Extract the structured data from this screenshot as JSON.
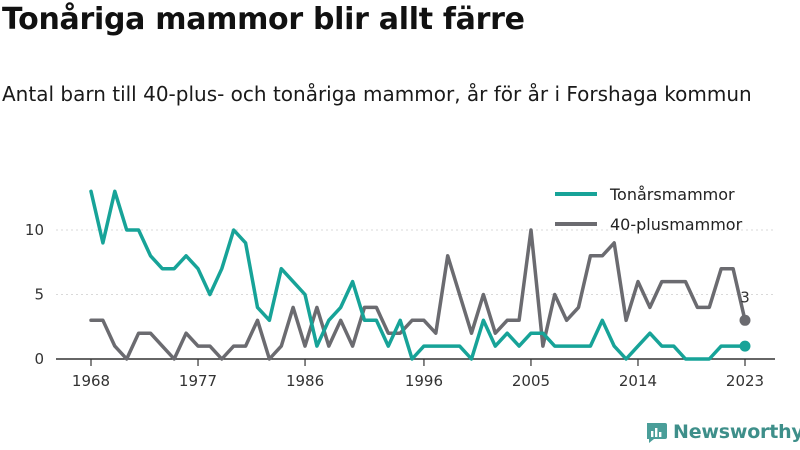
{
  "header": {
    "title": "Tonåriga mammor blir allt färre",
    "subtitle": "Antal barn till 40-plus- och tonåriga mammor, år för år i Forshaga kommun"
  },
  "brand": {
    "name": "Newsworthy",
    "icon": "newsworthy-logo-icon"
  },
  "colors": {
    "teen": "#17a398",
    "forty": "#6b6b70",
    "axis": "#333333",
    "grid": "#d9d9d9",
    "brand": "#3e8f8a"
  },
  "chart_data": {
    "type": "line",
    "title": "Tonåriga mammor blir allt färre",
    "subtitle": "Antal barn till 40-plus- och tonåriga mammor, år för år i Forshaga kommun",
    "xlabel": "",
    "ylabel": "",
    "x": [
      1968,
      1969,
      1970,
      1971,
      1972,
      1973,
      1974,
      1975,
      1976,
      1977,
      1978,
      1979,
      1980,
      1981,
      1982,
      1983,
      1984,
      1985,
      1986,
      1987,
      1988,
      1989,
      1990,
      1991,
      1992,
      1993,
      1994,
      1995,
      1996,
      1997,
      1998,
      1999,
      2000,
      2001,
      2002,
      2003,
      2004,
      2005,
      2006,
      2007,
      2008,
      2009,
      2010,
      2011,
      2012,
      2013,
      2014,
      2015,
      2016,
      2017,
      2018,
      2019,
      2020,
      2021,
      2022,
      2023
    ],
    "xlim": [
      1968,
      2023
    ],
    "ylim": [
      0,
      13
    ],
    "x_ticks": [
      "1968",
      "1977",
      "1986",
      "1996",
      "2005",
      "2014",
      "2023"
    ],
    "y_ticks": [
      "0",
      "5",
      "10"
    ],
    "grid": true,
    "legend_position": "top-right",
    "series": [
      {
        "name": "Tonårsmammor",
        "color": "#17a398",
        "values": [
          13,
          9,
          13,
          10,
          10,
          8,
          7,
          7,
          8,
          7,
          5,
          7,
          10,
          9,
          4,
          3,
          7,
          6,
          5,
          1,
          3,
          4,
          6,
          3,
          3,
          1,
          3,
          0,
          1,
          1,
          1,
          1,
          0,
          3,
          1,
          2,
          1,
          2,
          2,
          1,
          1,
          1,
          1,
          3,
          1,
          0,
          1,
          2,
          1,
          1,
          0,
          0,
          0,
          1,
          1,
          1
        ]
      },
      {
        "name": "40-plusmammor",
        "color": "#6b6b70",
        "values": [
          3,
          3,
          1,
          0,
          2,
          2,
          1,
          0,
          2,
          1,
          1,
          0,
          1,
          1,
          3,
          0,
          1,
          4,
          1,
          4,
          1,
          3,
          1,
          4,
          4,
          2,
          2,
          3,
          3,
          2,
          8,
          5,
          2,
          5,
          2,
          3,
          3,
          10,
          1,
          5,
          3,
          4,
          8,
          8,
          9,
          3,
          6,
          4,
          6,
          6,
          6,
          4,
          4,
          7,
          7,
          3
        ]
      }
    ],
    "annotations": [
      {
        "series": "40-plusmammor",
        "x": 2023,
        "text": "3"
      }
    ]
  }
}
